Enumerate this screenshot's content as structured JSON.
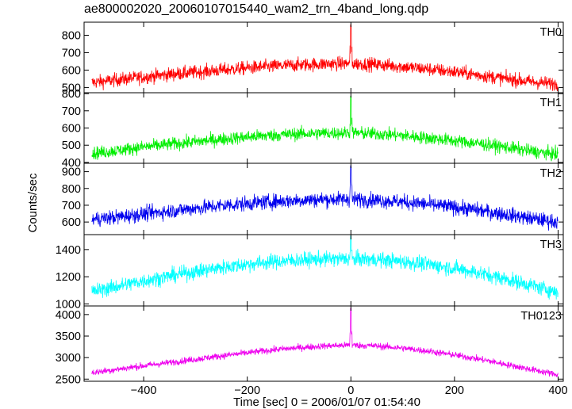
{
  "title": "ae800002020_20060107015440_wam2_trn_4band_long.qdp",
  "chart_data": {
    "type": "line",
    "title": "ae800002020_20060107015440_wam2_trn_4band_long.qdp",
    "xlabel": "Time [sec] 0 = 2006/01/07 01:54:40",
    "ylabel": "Counts/sec",
    "xlim": [
      -515,
      410
    ],
    "x_ticks": [
      -400,
      -200,
      0,
      200,
      400
    ],
    "x_tick_labels": [
      "−400",
      "−200",
      "0",
      "200",
      "400"
    ],
    "grid": false,
    "panels": [
      {
        "name": "TH0",
        "color": "#ff0000",
        "ylim": [
          470,
          875
        ],
        "y_ticks": [
          500,
          600,
          700,
          800
        ],
        "x": [
          -500,
          -450,
          -400,
          -350,
          -300,
          -250,
          -200,
          -150,
          -100,
          -50,
          0,
          50,
          100,
          150,
          200,
          250,
          300,
          350,
          400
        ],
        "y": [
          528,
          545,
          560,
          575,
          588,
          600,
          612,
          622,
          630,
          635,
          638,
          632,
          620,
          605,
          590,
          570,
          550,
          532,
          520
        ],
        "noise": 28,
        "spike": {
          "x": 0,
          "y": 860
        }
      },
      {
        "name": "TH1",
        "color": "#00ee00",
        "ylim": [
          395,
          805
        ],
        "y_ticks": [
          400,
          500,
          600,
          700,
          800
        ],
        "x": [
          -500,
          -450,
          -400,
          -350,
          -300,
          -250,
          -200,
          -150,
          -100,
          -50,
          0,
          50,
          100,
          150,
          200,
          250,
          300,
          350,
          400
        ],
        "y": [
          452,
          470,
          490,
          505,
          520,
          535,
          548,
          558,
          566,
          570,
          572,
          566,
          556,
          542,
          526,
          508,
          488,
          465,
          445
        ],
        "noise": 27,
        "spike": {
          "x": 0,
          "y": 785
        }
      },
      {
        "name": "TH2",
        "color": "#0000ee",
        "ylim": [
          525,
          950
        ],
        "y_ticks": [
          600,
          700,
          800,
          900
        ],
        "x": [
          -500,
          -450,
          -400,
          -350,
          -300,
          -250,
          -200,
          -150,
          -100,
          -50,
          0,
          50,
          100,
          150,
          200,
          250,
          300,
          350,
          400
        ],
        "y": [
          615,
          630,
          648,
          665,
          682,
          698,
          710,
          722,
          730,
          735,
          736,
          730,
          720,
          705,
          688,
          668,
          645,
          620,
          600
        ],
        "noise": 32,
        "spike": {
          "x": 0,
          "y": 935
        }
      },
      {
        "name": "TH3",
        "color": "#00ffff",
        "ylim": [
          985,
          1510
        ],
        "y_ticks": [
          1000,
          1200,
          1400
        ],
        "x": [
          -500,
          -450,
          -400,
          -350,
          -300,
          -250,
          -200,
          -150,
          -100,
          -50,
          0,
          50,
          100,
          150,
          200,
          250,
          300,
          350,
          400
        ],
        "y": [
          1090,
          1130,
          1170,
          1205,
          1238,
          1268,
          1292,
          1310,
          1322,
          1330,
          1332,
          1326,
          1312,
          1290,
          1262,
          1226,
          1182,
          1135,
          1085
        ],
        "noise": 40,
        "spike": {
          "x": 0,
          "y": 1500
        }
      },
      {
        "name": "TH0123",
        "color": "#ee00ee",
        "ylim": [
          2450,
          4200
        ],
        "y_ticks": [
          2500,
          3000,
          3500,
          4000
        ],
        "x": [
          -500,
          -450,
          -400,
          -350,
          -300,
          -250,
          -200,
          -150,
          -100,
          -50,
          0,
          50,
          100,
          150,
          200,
          250,
          300,
          350,
          400
        ],
        "y": [
          2650,
          2730,
          2810,
          2885,
          2960,
          3040,
          3110,
          3180,
          3230,
          3270,
          3290,
          3270,
          3220,
          3150,
          3060,
          2960,
          2840,
          2720,
          2600
        ],
        "noise": 55,
        "spike": {
          "x": 0,
          "y": 4150
        }
      }
    ]
  }
}
